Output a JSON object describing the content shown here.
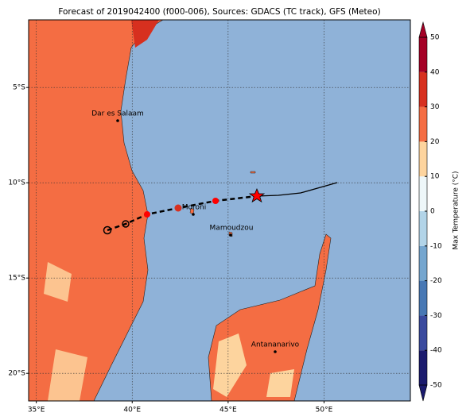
{
  "map": {
    "title": "Forecast of 2019042400 (f000-006), Sources: GDACS (TC track), GFS (Meteo)",
    "xlim": [
      34.6,
      54.5
    ],
    "ylim": [
      -21.45,
      -1.45
    ],
    "xticks": [
      {
        "value": 35,
        "label": "35°E"
      },
      {
        "value": 40,
        "label": "40°E"
      },
      {
        "value": 45,
        "label": "45°E"
      },
      {
        "value": 50,
        "label": "50°E"
      }
    ],
    "yticks": [
      {
        "value": -5,
        "label": "5°S"
      },
      {
        "value": -10,
        "label": "10°S"
      },
      {
        "value": -15,
        "label": "15°S"
      },
      {
        "value": -20,
        "label": "20°S"
      }
    ],
    "cities": [
      {
        "name": "Dar es Salaam"
      },
      {
        "name": "Moroni"
      },
      {
        "name": "Mamoudzou"
      },
      {
        "name": "Antananarivo"
      }
    ],
    "colorbar": {
      "label": "Max Temperature (°C)",
      "lim": [
        -50,
        50
      ],
      "ticks": [
        -50,
        -40,
        -30,
        -20,
        -10,
        0,
        10,
        20,
        30,
        40,
        50
      ],
      "colors": [
        "#1b1b6e",
        "#3a4a9e",
        "#4878b4",
        "#75a6cf",
        "#b2d4e8",
        "#eef7f9",
        "#fdd49e",
        "#f46d43",
        "#d7301f",
        "#a50026"
      ]
    }
  }
}
